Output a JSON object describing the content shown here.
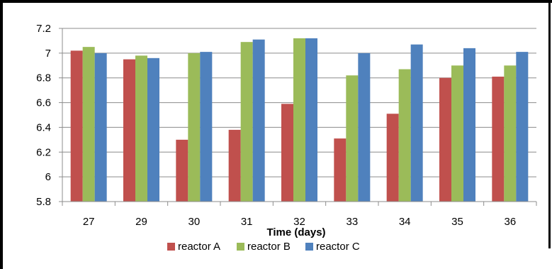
{
  "chart_data": {
    "type": "bar",
    "title": "",
    "xlabel": "Time (days)",
    "ylabel": "",
    "categories": [
      "27",
      "29",
      "30",
      "31",
      "32",
      "33",
      "34",
      "35",
      "36"
    ],
    "series": [
      {
        "name": "reactor A",
        "color": "#c0504d",
        "values": [
          7.02,
          6.95,
          6.3,
          6.38,
          6.59,
          6.31,
          6.51,
          6.8,
          6.81
        ]
      },
      {
        "name": "reactor B",
        "color": "#9bbb59",
        "values": [
          7.05,
          6.98,
          7.0,
          7.09,
          7.12,
          6.82,
          6.87,
          6.9,
          6.9
        ]
      },
      {
        "name": "reactor C",
        "color": "#4f81bd",
        "values": [
          7.0,
          6.96,
          7.01,
          7.11,
          7.12,
          7.0,
          7.07,
          7.04,
          7.01
        ]
      }
    ],
    "ylim": [
      5.8,
      7.2
    ],
    "yticks": [
      "5.8",
      "6",
      "6.2",
      "6.4",
      "6.6",
      "6.8",
      "7",
      "7.2"
    ],
    "grid": true,
    "legend_position": "bottom"
  }
}
